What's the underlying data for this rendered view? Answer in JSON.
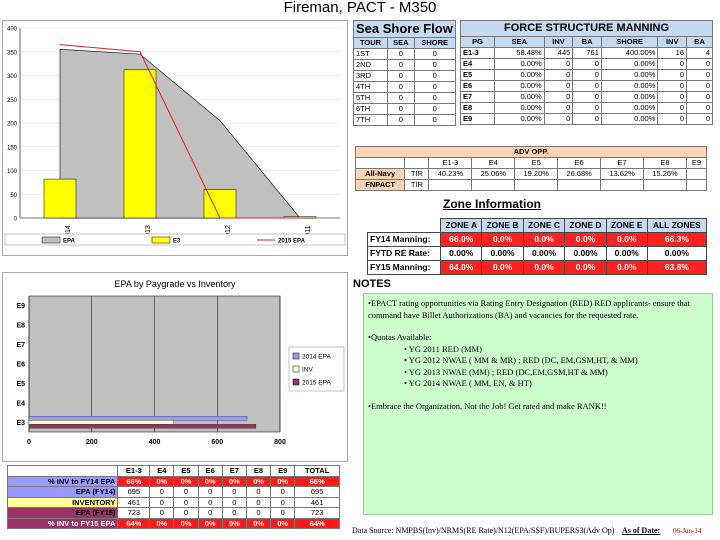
{
  "page": {
    "title": "Fireman, PACT - M350"
  },
  "chart1": {
    "type": "bar",
    "categories": [
      "2014",
      "2013",
      "2012",
      "2011"
    ],
    "ylim": [
      0,
      400
    ],
    "yticks": [
      "0",
      "50",
      "100",
      "150",
      "200",
      "250",
      "300",
      "350",
      "400"
    ],
    "series": [
      {
        "name": "EPA",
        "kind": "area",
        "values": [
          355,
          345,
          205,
          0
        ]
      },
      {
        "name": "E3",
        "kind": "bar",
        "values": [
          82,
          312,
          60,
          3
        ]
      },
      {
        "name": "2015 EPA",
        "kind": "line",
        "values": [
          365,
          350,
          0,
          0
        ]
      }
    ],
    "colors": {
      "epa": "#c0c0c0",
      "e3": "#ffff00",
      "epa2015": "#e02020"
    }
  },
  "chart2": {
    "type": "bar",
    "title": "EPA by Paygrade vs Inventory",
    "categories": [
      "E3",
      "E4",
      "E5",
      "E6",
      "E7",
      "E8",
      "E9"
    ],
    "xticks": [
      "0",
      "200",
      "400",
      "600",
      "800"
    ],
    "xlim": [
      0,
      800
    ],
    "series": [
      {
        "name": "2014 EPA",
        "values": [
          695,
          0,
          0,
          0,
          0,
          0,
          0
        ]
      },
      {
        "name": "INV",
        "values": [
          461,
          0,
          0,
          0,
          0,
          0,
          0
        ]
      },
      {
        "name": "2015 EPA",
        "values": [
          723,
          0,
          0,
          0,
          0,
          0,
          0
        ]
      }
    ],
    "colors": {
      "epa2014": "#9999ff",
      "inv": "#ffffcc",
      "epa2015": "#993366"
    }
  },
  "seashore": {
    "title": "Sea Shore Flow",
    "headers": [
      "TOUR",
      "SEA",
      "SHORE"
    ],
    "rows": [
      [
        "1ST",
        "0",
        "0"
      ],
      [
        "2ND",
        "0",
        "0"
      ],
      [
        "3RD",
        "0",
        "0"
      ],
      [
        "4TH",
        "0",
        "0"
      ],
      [
        "5TH",
        "0",
        "0"
      ],
      [
        "6TH",
        "0",
        "0"
      ],
      [
        "7TH",
        "0",
        "0"
      ]
    ]
  },
  "force": {
    "title": "FORCE STRUCTURE MANNING",
    "headers": [
      "PG",
      "SEA",
      "INV",
      "BA",
      "SHORE",
      "INV",
      "BA"
    ],
    "rows": [
      [
        "E1-3",
        "58.48%",
        "445",
        "761",
        "400.00%",
        "16",
        "4"
      ],
      [
        "E4",
        "0.00%",
        "0",
        "0",
        "0.00%",
        "0",
        "0"
      ],
      [
        "E5",
        "0.00%",
        "0",
        "0",
        "0.00%",
        "0",
        "0"
      ],
      [
        "E6",
        "0.00%",
        "0",
        "0",
        "0.00%",
        "0",
        "0"
      ],
      [
        "E7",
        "0.00%",
        "0",
        "0",
        "0.00%",
        "0",
        "0"
      ],
      [
        "E8",
        "0.00%",
        "0",
        "0",
        "0.00%",
        "0",
        "0"
      ],
      [
        "E9",
        "0.00%",
        "0",
        "0",
        "0.00%",
        "0",
        "0"
      ]
    ]
  },
  "adv": {
    "title": "ADV OPP.",
    "headers": [
      "E1-3",
      "E4",
      "E5",
      "E6",
      "E7",
      "E8",
      "E9"
    ],
    "row1": {
      "label": "All-Navy",
      "sub": "TIR",
      "values": [
        "40.23%",
        "25.06%",
        "19.20%",
        "26.68%",
        "13.62%",
        "15.26%"
      ]
    },
    "row2": {
      "label": "FNPACT",
      "sub": "TIR"
    }
  },
  "zone": {
    "title": "Zone Information",
    "headers": [
      "ZONE A",
      "ZONE B",
      "ZONE C",
      "ZONE D",
      "ZONE E",
      "ALL ZONES"
    ],
    "rows": [
      {
        "label": "FY14 Manning:",
        "values": [
          "66.0%",
          "0.0%",
          "0.0%",
          "0.0%",
          "0.0%",
          "66.3%"
        ]
      },
      {
        "label": "FYTD RE Rate:",
        "values": [
          "0.00%",
          "0.00%",
          "0.00%",
          "0.00%",
          "0.00%",
          "0.00%"
        ]
      },
      {
        "label": "FY15 Manning:",
        "values": [
          "64.0%",
          "0.0%",
          "0.0%",
          "0.0%",
          "0.0%",
          "63.8%"
        ]
      }
    ]
  },
  "notes": {
    "title": "NOTES",
    "p1": "•EPACT rating opportunities  via Rating Entry Designation (RED) RED applicants- ensure that command have Billet Authorizations (BA) and vacancies  for the requested rate.",
    "p2": "•Quotas Available:",
    "bullets": [
      "• YG 2011 RED (MM)",
      "• YG 2012 NWAE ( MM & MR) ; RED (DC, EM,GSM,HT, & MM)",
      "• YG 2013 NWAE (MM) ; RED (DC,EM,GSM,HT & MM)",
      "• YG 2014 NWAE ( MM, EN, & HT)"
    ],
    "p3": "•Embrace the Organization, Not the Job! Get rated and make RANK!!"
  },
  "footer": {
    "source": "Data Source: NMPBS(Inv)/NRMS(RE Rate)/N12(EPA/SSF)/BUPERS3(Adv Op)",
    "asof_label": "As of Date:",
    "asof_value": "06-Jun-14"
  },
  "bottom": {
    "headers": [
      "",
      "E1-3",
      "E4",
      "E5",
      "E6",
      "E7",
      "E8",
      "E9",
      "TOTAL"
    ],
    "rows": [
      {
        "label": "% INV to FY14 EPA",
        "bg": "#9999ff",
        "red": true,
        "values": [
          "66%",
          "0%",
          "0%",
          "0%",
          "0%",
          "0%",
          "0%",
          "66%"
        ]
      },
      {
        "label": "EPA (FY14)",
        "bg": "#9999ff",
        "red": false,
        "values": [
          "695",
          "0",
          "0",
          "0",
          "0",
          "0",
          "0",
          "695"
        ]
      },
      {
        "label": "INVENTORY",
        "bg": "#ffff99",
        "red": false,
        "values": [
          "461",
          "0",
          "0",
          "0",
          "0",
          "0",
          "0",
          "461"
        ]
      },
      {
        "label": "EPA (FY15)",
        "bg": "#993366",
        "red": false,
        "values": [
          "723",
          "0",
          "0",
          "0",
          "0",
          "0",
          "0",
          "723"
        ]
      },
      {
        "label": "% INV to FY15 EPA",
        "bg": "#993366",
        "red": true,
        "values": [
          "64%",
          "0%",
          "0%",
          "0%",
          "0%",
          "0%",
          "0%",
          "64%"
        ]
      }
    ]
  }
}
